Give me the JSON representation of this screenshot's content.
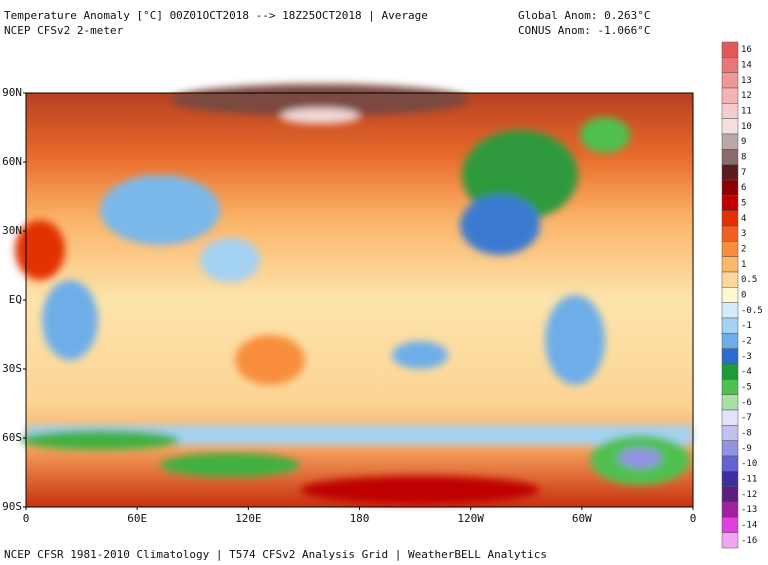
{
  "header": {
    "title": "Temperature Anomaly [°C] 00Z01OCT2018 --> 18Z25OCT2018 | Average",
    "subtitle": "NCEP CFSv2 2-meter",
    "global_anom": "Global Anom: 0.263°C",
    "conus_anom": "CONUS Anom: -1.066°C"
  },
  "map": {
    "lat_labels": [
      "90N",
      "60N",
      "30N",
      "EQ",
      "30S",
      "60S",
      "90S"
    ],
    "lon_labels": [
      "0",
      "60E",
      "120E",
      "180",
      "120W",
      "60W",
      "0"
    ]
  },
  "colorbar": {
    "ticks": [
      16,
      14,
      13,
      12,
      11,
      10,
      9,
      8,
      7,
      6,
      5,
      4,
      3,
      2,
      1,
      0.5,
      0,
      -0.5,
      -1,
      -2,
      -3,
      -4,
      -5,
      -6,
      -7,
      -8,
      -9,
      -10,
      -11,
      -12,
      -13,
      -14,
      -16
    ],
    "colors": [
      "#e05a5a",
      "#e87878",
      "#ee9898",
      "#f2b4b4",
      "#f4cccc",
      "#f4dede",
      "#b8a8a8",
      "#8a6c6c",
      "#5a1c1c",
      "#8e0000",
      "#c00000",
      "#e23000",
      "#f06020",
      "#f88e3e",
      "#fbb868",
      "#fdd89a",
      "#fff6d2",
      "#d4ecfa",
      "#a4d2f2",
      "#6eaee8",
      "#2c6cd0",
      "#1e9a3c",
      "#50c050",
      "#a6e2a6",
      "#e2e2f8",
      "#c2c2f0",
      "#9292e2",
      "#6262d2",
      "#3e2ea0",
      "#5e1e80",
      "#a020a0",
      "#e040e0",
      "#f2a6f2"
    ]
  },
  "footer": "NCEP CFSR 1981-2010 Climatology | T574 CFSv2 Analysis Grid | WeatherBELL Analytics"
}
